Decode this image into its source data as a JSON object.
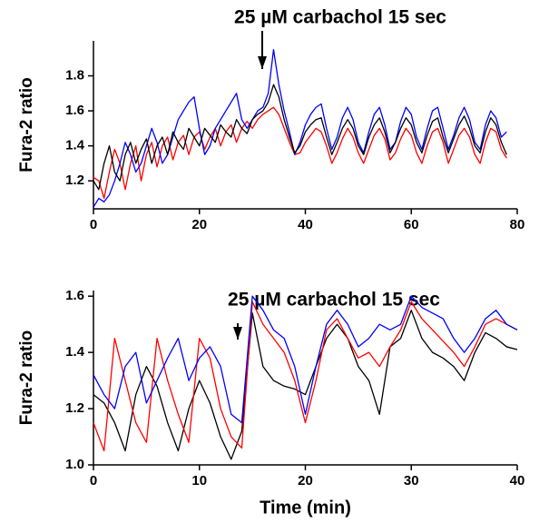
{
  "chart_data": [
    {
      "type": "line",
      "title": "25 µM carbachol 15 sec",
      "ylabel": "Fura-2 ratio",
      "x": [
        0,
        1,
        2,
        3,
        4,
        5,
        6,
        7,
        8,
        9,
        10,
        11,
        12,
        13,
        14,
        15,
        16,
        17,
        18,
        19,
        20,
        21,
        22,
        23,
        24,
        25,
        26,
        27,
        28,
        29,
        30,
        31,
        32,
        33,
        34,
        35,
        36,
        37,
        38,
        39,
        40,
        41,
        42,
        43,
        44,
        45,
        46,
        47,
        48,
        49,
        50,
        51,
        52,
        53,
        54,
        55,
        56,
        57,
        58,
        59,
        60,
        61,
        62,
        63,
        64,
        65,
        66,
        67,
        68,
        69,
        70,
        71,
        72,
        73,
        74,
        75,
        76,
        77,
        78
      ],
      "series": [
        {
          "color": "#ff0000",
          "values": [
            1.22,
            1.2,
            1.1,
            1.25,
            1.38,
            1.3,
            1.15,
            1.3,
            1.4,
            1.2,
            1.35,
            1.42,
            1.28,
            1.4,
            1.45,
            1.32,
            1.42,
            1.46,
            1.35,
            1.45,
            1.48,
            1.38,
            1.45,
            1.5,
            1.4,
            1.48,
            1.52,
            1.42,
            1.5,
            1.54,
            1.5,
            1.55,
            1.58,
            1.6,
            1.62,
            1.58,
            1.5,
            1.42,
            1.35,
            1.36,
            1.42,
            1.46,
            1.5,
            1.48,
            1.4,
            1.3,
            1.36,
            1.44,
            1.5,
            1.45,
            1.36,
            1.3,
            1.38,
            1.46,
            1.5,
            1.44,
            1.32,
            1.36,
            1.44,
            1.5,
            1.46,
            1.36,
            1.3,
            1.4,
            1.48,
            1.5,
            1.42,
            1.3,
            1.38,
            1.46,
            1.5,
            1.45,
            1.35,
            1.3,
            1.42,
            1.5,
            1.48,
            1.38,
            1.33
          ]
        },
        {
          "color": "#0000ff",
          "values": [
            1.05,
            1.1,
            1.08,
            1.12,
            1.2,
            1.3,
            1.42,
            1.35,
            1.25,
            1.3,
            1.4,
            1.5,
            1.42,
            1.3,
            1.35,
            1.45,
            1.55,
            1.6,
            1.65,
            1.68,
            1.5,
            1.35,
            1.4,
            1.5,
            1.55,
            1.6,
            1.65,
            1.7,
            1.55,
            1.5,
            1.55,
            1.6,
            1.62,
            1.7,
            1.95,
            1.75,
            1.6,
            1.48,
            1.35,
            1.42,
            1.52,
            1.58,
            1.62,
            1.64,
            1.5,
            1.38,
            1.45,
            1.56,
            1.62,
            1.55,
            1.42,
            1.36,
            1.48,
            1.58,
            1.62,
            1.52,
            1.38,
            1.42,
            1.54,
            1.62,
            1.58,
            1.45,
            1.38,
            1.5,
            1.6,
            1.62,
            1.5,
            1.38,
            1.46,
            1.56,
            1.62,
            1.55,
            1.42,
            1.38,
            1.52,
            1.6,
            1.56,
            1.45,
            1.48
          ]
        },
        {
          "color": "#000000",
          "values": [
            1.2,
            1.15,
            1.3,
            1.4,
            1.25,
            1.2,
            1.35,
            1.42,
            1.3,
            1.38,
            1.44,
            1.3,
            1.4,
            1.45,
            1.35,
            1.48,
            1.42,
            1.38,
            1.5,
            1.45,
            1.4,
            1.5,
            1.46,
            1.42,
            1.52,
            1.48,
            1.45,
            1.55,
            1.5,
            1.47,
            1.55,
            1.58,
            1.6,
            1.65,
            1.75,
            1.68,
            1.55,
            1.45,
            1.36,
            1.4,
            1.48,
            1.52,
            1.55,
            1.56,
            1.45,
            1.35,
            1.42,
            1.5,
            1.55,
            1.5,
            1.4,
            1.35,
            1.45,
            1.52,
            1.56,
            1.48,
            1.36,
            1.42,
            1.5,
            1.56,
            1.52,
            1.42,
            1.36,
            1.46,
            1.54,
            1.56,
            1.45,
            1.36,
            1.44,
            1.52,
            1.57,
            1.5,
            1.4,
            1.36,
            1.48,
            1.56,
            1.52,
            1.42,
            1.35
          ]
        }
      ],
      "xlim": [
        0,
        80
      ],
      "xticks": [
        0,
        20,
        40,
        60,
        80
      ],
      "ylim": [
        1.04,
        2.0
      ],
      "yticks": [
        1.2,
        1.4,
        1.6,
        1.8
      ]
    },
    {
      "type": "line",
      "title": "25 µM carbachol 15 sec",
      "ylabel": "Fura-2 ratio",
      "xlabel": "Time (min)",
      "x": [
        0,
        1,
        2,
        3,
        4,
        5,
        6,
        7,
        8,
        9,
        10,
        11,
        12,
        13,
        14,
        15,
        16,
        17,
        18,
        19,
        20,
        21,
        22,
        23,
        24,
        25,
        26,
        27,
        28,
        29,
        30,
        31,
        32,
        33,
        34,
        35,
        36,
        37,
        38,
        39,
        40
      ],
      "series": [
        {
          "color": "#000000",
          "values": [
            1.25,
            1.22,
            1.15,
            1.05,
            1.25,
            1.35,
            1.28,
            1.15,
            1.05,
            1.2,
            1.3,
            1.22,
            1.1,
            1.02,
            1.12,
            1.54,
            1.35,
            1.3,
            1.28,
            1.27,
            1.25,
            1.35,
            1.45,
            1.5,
            1.45,
            1.35,
            1.3,
            1.18,
            1.42,
            1.45,
            1.55,
            1.45,
            1.4,
            1.38,
            1.35,
            1.3,
            1.4,
            1.47,
            1.45,
            1.42,
            1.41
          ]
        },
        {
          "color": "#ff0000",
          "values": [
            1.15,
            1.05,
            1.45,
            1.3,
            1.15,
            1.08,
            1.45,
            1.3,
            1.18,
            1.08,
            1.45,
            1.38,
            1.2,
            1.1,
            1.06,
            1.58,
            1.5,
            1.45,
            1.4,
            1.3,
            1.15,
            1.3,
            1.48,
            1.52,
            1.45,
            1.38,
            1.4,
            1.35,
            1.42,
            1.48,
            1.58,
            1.52,
            1.48,
            1.44,
            1.4,
            1.35,
            1.42,
            1.5,
            1.52,
            1.5,
            1.48
          ]
        },
        {
          "color": "#0000ff",
          "values": [
            1.32,
            1.25,
            1.2,
            1.35,
            1.4,
            1.22,
            1.3,
            1.38,
            1.45,
            1.3,
            1.38,
            1.42,
            1.35,
            1.18,
            1.15,
            1.6,
            1.55,
            1.48,
            1.45,
            1.35,
            1.18,
            1.35,
            1.5,
            1.55,
            1.5,
            1.42,
            1.45,
            1.5,
            1.48,
            1.5,
            1.6,
            1.56,
            1.54,
            1.52,
            1.45,
            1.4,
            1.45,
            1.52,
            1.55,
            1.5,
            1.48
          ]
        }
      ],
      "xlim": [
        0,
        40
      ],
      "xticks": [
        0,
        10,
        20,
        30,
        40
      ],
      "ylim": [
        1.0,
        1.62
      ],
      "yticks": [
        {
          "value": 1,
          "label": "1.0"
        },
        1.2,
        1.4,
        1.6
      ]
    }
  ]
}
